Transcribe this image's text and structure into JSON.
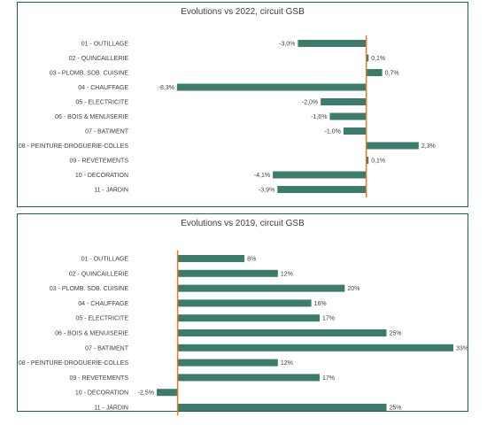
{
  "colors": {
    "bar": "#3d7c6c",
    "zero_line": "#e07b20",
    "border": "#1f5e52"
  },
  "chart_data": [
    {
      "type": "bar",
      "orientation": "horizontal",
      "title": "Evolutions vs 2022, circuit GSB",
      "categories": [
        "01 - OUTILLAGE",
        "02 - QUINCAILLERIE",
        "03 - PLOMB. SDB. CUISINE",
        "04 - CHAUFFAGE",
        "05 - ELECTRICITE",
        "06 - BOIS & MENUISERIE",
        "07 - BATIMENT",
        "08 - PEINTURE-DROGUERIE-COLLES",
        "09 - REVETEMENTS",
        "10 - DECORATION",
        "11 - JARDIN"
      ],
      "values": [
        -3.0,
        0.1,
        0.7,
        -8.3,
        -2.0,
        -1.6,
        -1.0,
        2.3,
        0.1,
        -4.1,
        -3.9
      ],
      "labels": [
        "-3,0%",
        "0,1%",
        "0,7%",
        "-8,3%",
        "-2,0%",
        "-1,6%",
        "-1,0%",
        "2,3%",
        "0,1%",
        "-4,1%",
        "-3,9%"
      ],
      "xlim": [
        -8.3,
        3.2
      ]
    },
    {
      "type": "bar",
      "orientation": "horizontal",
      "title": "Evolutions vs 2019, circuit GSB",
      "categories": [
        "01 - OUTILLAGE",
        "02 - QUINCAILLERIE",
        "03 - PLOMB. SDB. CUISINE",
        "04 - CHAUFFAGE",
        "05 - ELECTRICITE",
        "06 - BOIS & MENUISERIE",
        "07 - BATIMENT",
        "08 - PEINTURE-DROGUERIE-COLLES",
        "09 - REVETEMENTS",
        "10 - DECORATION",
        "11 - JARDIN"
      ],
      "values": [
        8,
        12,
        20,
        16,
        17,
        25,
        33,
        12,
        17,
        -2.5,
        25
      ],
      "labels": [
        "8%",
        "12%",
        "20%",
        "16%",
        "17%",
        "25%",
        "33%",
        "12%",
        "17%",
        "-2,5%",
        "25%"
      ],
      "xlim": [
        -2.5,
        33
      ]
    }
  ]
}
